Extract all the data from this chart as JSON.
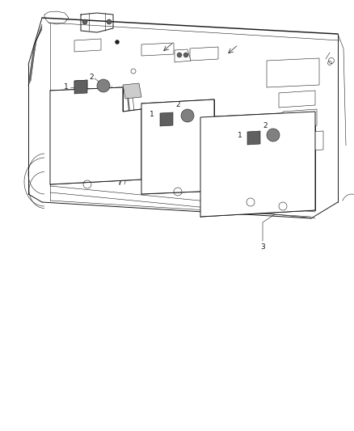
{
  "bg_color": "#ffffff",
  "line_color": "#1a1a1a",
  "lw": 0.7,
  "tlw": 0.4,
  "figure_width": 4.38,
  "figure_height": 5.33,
  "dpi": 100,
  "label_fontsize": 6.5,
  "gray_fill": "#a0a0a0",
  "dark_fill": "#606060",
  "mid_fill": "#808080"
}
